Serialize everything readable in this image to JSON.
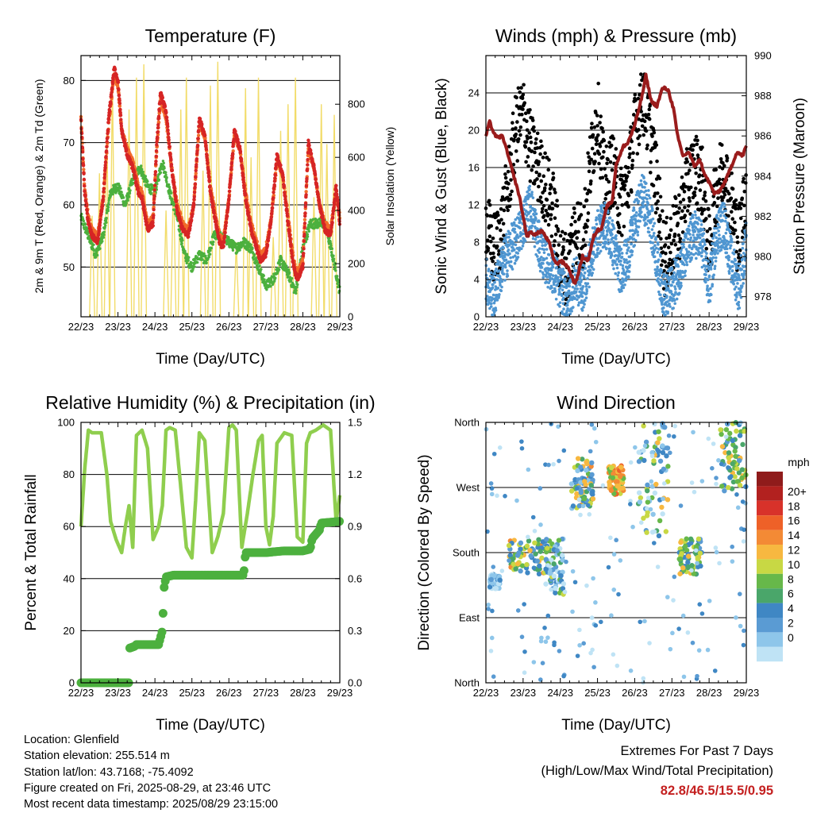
{
  "info": {
    "location": "Location: Glenfield",
    "elevation": "Station elevation: 255.514 m",
    "latlon": "Station lat/lon: 43.7168; -75.4092",
    "created": "Figure created on Fri, 2025-08-29, at 23:46 UTC",
    "recent": "Most recent data timestamp: 2025/08/29 23:15:00"
  },
  "extremes": {
    "heading": "Extremes For Past 7 Days",
    "subheading": "(High/Low/Max Wind/Total Precipitation)",
    "values": "82.8/46.5/15.5/0.95"
  },
  "chart_data": [
    {
      "type": "line",
      "title": "Temperature (F)",
      "xlabel": "Time (Day/UTC)",
      "ylabel": "2m & 9m T (Red, Orange) & 2m Td (Green)",
      "ylabel_right": "Solar Insolation (Yellow)",
      "x_ticks": [
        "22/23",
        "23/23",
        "24/23",
        "25/23",
        "26/23",
        "27/23",
        "28/23",
        "29/23"
      ],
      "xlim": [
        0,
        7
      ],
      "ylim": [
        42,
        84
      ],
      "y_ticks": [
        50,
        60,
        70,
        80
      ],
      "ylim_right": [
        0,
        983
      ],
      "y_ticks_right": [
        0,
        200,
        400,
        600,
        800
      ],
      "grid": "horizontal",
      "series": [
        {
          "name": "2m T",
          "axis": "left",
          "color": "#d62525",
          "x": [
            0,
            0.1,
            0.2,
            0.3,
            0.45,
            0.6,
            0.75,
            0.9,
            1.0,
            1.1,
            1.25,
            1.4,
            1.55,
            1.65,
            1.8,
            1.95,
            2.05,
            2.15,
            2.3,
            2.45,
            2.6,
            2.75,
            2.9,
            3.05,
            3.2,
            3.35,
            3.5,
            3.65,
            3.75,
            3.85,
            4.0,
            4.15,
            4.3,
            4.45,
            4.6,
            4.75,
            4.85,
            5.0,
            5.15,
            5.3,
            5.45,
            5.6,
            5.75,
            5.85,
            6.0,
            6.15,
            6.3,
            6.45,
            6.6,
            6.75,
            6.9,
            7.0
          ],
          "y": [
            74,
            62,
            57,
            55,
            54,
            61,
            74,
            82,
            80,
            72,
            68,
            66,
            62,
            61,
            56,
            57,
            70,
            78,
            75,
            66,
            59,
            56,
            55,
            60,
            74,
            71,
            62,
            57,
            54,
            53,
            61,
            72,
            69,
            61,
            56,
            53,
            51,
            52,
            58,
            68,
            65,
            57,
            50,
            48,
            50,
            70,
            66,
            60,
            56,
            55,
            63,
            57
          ]
        },
        {
          "name": "9m T",
          "axis": "left",
          "color": "#f26b2a",
          "x": [
            0,
            0.1,
            0.2,
            0.3,
            0.45,
            0.6,
            0.75,
            0.9,
            1.0,
            1.1,
            1.25,
            1.4,
            1.55,
            1.65,
            1.8,
            1.95,
            2.05,
            2.15,
            2.3,
            2.45,
            2.6,
            2.75,
            2.9,
            3.05,
            3.2,
            3.35,
            3.5,
            3.65,
            3.75,
            3.85,
            4.0,
            4.15,
            4.3,
            4.45,
            4.6,
            4.75,
            4.85,
            5.0,
            5.15,
            5.3,
            5.45,
            5.6,
            5.75,
            5.85,
            6.0,
            6.15,
            6.3,
            6.45,
            6.6,
            6.75,
            6.9,
            7.0
          ],
          "y": [
            74,
            62.5,
            58,
            56,
            55,
            61,
            73,
            81,
            79,
            72,
            69,
            67,
            63,
            62,
            57,
            58,
            69,
            77,
            74,
            66,
            60,
            57,
            56,
            60,
            73,
            71,
            63,
            58,
            55,
            54,
            61,
            71,
            69,
            62,
            57,
            54,
            52,
            53,
            58,
            67,
            65,
            58,
            51,
            49,
            51,
            69,
            66,
            60,
            57,
            56,
            62,
            58
          ]
        },
        {
          "name": "2m Td",
          "axis": "left",
          "color": "#4cb03e",
          "x": [
            0,
            0.2,
            0.4,
            0.6,
            0.8,
            1.0,
            1.2,
            1.4,
            1.6,
            1.8,
            2.0,
            2.2,
            2.4,
            2.6,
            2.8,
            3.0,
            3.2,
            3.4,
            3.6,
            3.8,
            4.0,
            4.2,
            4.4,
            4.6,
            4.8,
            5.0,
            5.2,
            5.4,
            5.6,
            5.8,
            6.0,
            6.2,
            6.4,
            6.6,
            6.8,
            7.0
          ],
          "y": [
            58,
            55,
            52,
            55,
            62,
            63,
            60,
            64,
            66,
            63,
            62,
            67,
            62,
            58,
            52,
            50,
            52,
            51,
            55,
            55,
            54,
            53,
            54,
            53,
            50,
            47,
            48,
            51,
            49,
            46,
            53,
            57,
            57,
            57,
            52,
            46
          ]
        },
        {
          "name": "Solar Insolation",
          "axis": "right",
          "color": "#f2dc6a",
          "peaks_x": [
            0.3,
            0.5,
            0.7,
            0.85,
            1.3,
            1.5,
            1.7,
            2.3,
            2.5,
            2.7,
            2.85,
            3.3,
            3.5,
            3.7,
            4.2,
            4.45,
            4.6,
            4.8,
            5.2,
            5.4,
            5.6,
            5.8,
            6.3,
            6.5,
            6.65,
            6.85
          ],
          "peaks_y": [
            380,
            540,
            700,
            900,
            780,
            900,
            950,
            400,
            540,
            780,
            900,
            550,
            870,
            960,
            280,
            860,
            600,
            900,
            300,
            700,
            800,
            900,
            450,
            800,
            650,
            760
          ]
        }
      ]
    },
    {
      "type": "scatter",
      "title": "Winds (mph) & Pressure (mb)",
      "xlabel": "Time (Day/UTC)",
      "ylabel": "Sonic Wind & Gust (Blue, Black)",
      "ylabel_right": "Station Pressure (Maroon)",
      "x_ticks": [
        "22/23",
        "23/23",
        "24/23",
        "25/23",
        "26/23",
        "27/23",
        "28/23",
        "29/23"
      ],
      "xlim": [
        0,
        7
      ],
      "ylim": [
        0,
        28
      ],
      "y_ticks": [
        0,
        4,
        8,
        12,
        16,
        20,
        24
      ],
      "ylim_right": [
        977,
        990
      ],
      "y_ticks_right": [
        978,
        980,
        982,
        984,
        986,
        988,
        990
      ],
      "grid": "horizontal",
      "series": [
        {
          "name": "Sonic Wind",
          "axis": "left",
          "color": "#4f96d1",
          "x": [
            0,
            0.2,
            0.4,
            0.6,
            0.8,
            1.0,
            1.2,
            1.4,
            1.6,
            1.8,
            2.0,
            2.2,
            2.4,
            2.6,
            2.8,
            3.0,
            3.2,
            3.4,
            3.6,
            3.8,
            4.0,
            4.2,
            4.4,
            4.6,
            4.8,
            5.0,
            5.2,
            5.4,
            5.6,
            5.8,
            6.0,
            6.2,
            6.4,
            6.6,
            6.8,
            7.0
          ],
          "y": [
            4,
            2,
            5,
            7,
            8,
            10,
            12,
            8,
            6,
            5,
            3,
            2,
            4,
            3,
            6,
            9,
            10,
            8,
            5,
            6,
            10,
            13,
            11,
            6,
            2,
            3,
            5,
            7,
            9,
            8,
            3,
            9,
            10,
            6,
            3,
            8
          ]
        },
        {
          "name": "Gust",
          "axis": "left",
          "color": "#000000",
          "x": [
            0,
            0.2,
            0.4,
            0.6,
            0.8,
            1.0,
            1.2,
            1.4,
            1.6,
            1.8,
            2.0,
            2.2,
            2.4,
            2.6,
            2.8,
            3.0,
            3.2,
            3.4,
            3.6,
            3.8,
            4.0,
            4.2,
            4.4,
            4.6,
            4.8,
            5.0,
            5.2,
            5.4,
            5.6,
            5.8,
            6.0,
            6.2,
            6.4,
            6.6,
            6.8,
            7.0
          ],
          "y": [
            10,
            7,
            9,
            14,
            20,
            22,
            18,
            16,
            14,
            12,
            6,
            5,
            10,
            8,
            16,
            22,
            14,
            16,
            12,
            14,
            20,
            24,
            20,
            14,
            6,
            8,
            10,
            14,
            16,
            15,
            7,
            14,
            16,
            12,
            8,
            14
          ]
        },
        {
          "name": "Station Pressure",
          "axis": "right",
          "color": "#9a1c1c",
          "x": [
            0,
            0.1,
            0.2,
            0.3,
            0.45,
            0.6,
            0.75,
            0.9,
            1.0,
            1.1,
            1.2,
            1.35,
            1.5,
            1.6,
            1.7,
            1.8,
            1.9,
            2.0,
            2.2,
            2.4,
            2.6,
            2.75,
            2.9,
            3.0,
            3.1,
            3.25,
            3.4,
            3.5,
            3.6,
            3.7,
            3.8,
            4.0,
            4.2,
            4.3,
            4.45,
            4.6,
            4.75,
            4.9,
            5.05,
            5.15,
            5.3,
            5.45,
            5.6,
            5.75,
            5.9,
            6.0,
            6.15,
            6.3,
            6.45,
            6.6,
            6.75,
            6.9,
            7.0
          ],
          "y": [
            986,
            986.7,
            986.2,
            985.9,
            986,
            985,
            984,
            983,
            982,
            981,
            981.2,
            981.1,
            981.3,
            981.0,
            980.7,
            980,
            979.6,
            979.8,
            979.5,
            978.6,
            980,
            979.8,
            981,
            981.3,
            981.4,
            982.5,
            982.8,
            984.6,
            985,
            985.5,
            985.6,
            986.5,
            988,
            989,
            987.7,
            987.5,
            988.4,
            988.3,
            987.3,
            986,
            985,
            985.2,
            984.5,
            984.8,
            984.0,
            983.7,
            983.1,
            983.3,
            983.8,
            984.5,
            985.2,
            985.0,
            985.5
          ]
        }
      ]
    },
    {
      "type": "line",
      "title": "Relative Humidity (%) & Precipitation (in)",
      "xlabel": "Time (Day/UTC)",
      "ylabel": "Percent & Total Rainfall",
      "x_ticks": [
        "22/23",
        "23/23",
        "24/23",
        "25/23",
        "26/23",
        "27/23",
        "28/23",
        "29/23"
      ],
      "xlim": [
        0,
        7
      ],
      "ylim": [
        0,
        100
      ],
      "y_ticks": [
        0,
        20,
        40,
        60,
        80,
        100
      ],
      "ylim_right": [
        0,
        1.5
      ],
      "y_ticks_right": [
        "0.0",
        "0.3",
        "0.6",
        "0.9",
        "1.2",
        "1.5"
      ],
      "grid": "horizontal",
      "series": [
        {
          "name": "Relative Humidity",
          "axis": "left",
          "color": "#8fce4e",
          "x": [
            0,
            0.1,
            0.2,
            0.3,
            0.55,
            0.7,
            0.8,
            0.95,
            1.1,
            1.2,
            1.3,
            1.4,
            1.5,
            1.65,
            1.8,
            1.95,
            2.1,
            2.2,
            2.3,
            2.4,
            2.55,
            2.7,
            2.85,
            3.0,
            3.1,
            3.2,
            3.35,
            3.55,
            3.7,
            3.85,
            4.0,
            4.1,
            4.2,
            4.35,
            4.5,
            4.65,
            4.8,
            4.9,
            5.0,
            5.1,
            5.2,
            5.3,
            5.5,
            5.7,
            5.85,
            6.0,
            6.1,
            6.2,
            6.35,
            6.55,
            6.75,
            6.9,
            7.0
          ],
          "y": [
            60,
            82,
            97,
            96,
            96,
            80,
            62,
            55,
            50,
            60,
            68,
            52,
            95,
            97,
            90,
            55,
            60,
            68,
            97,
            98,
            97,
            75,
            52,
            48,
            70,
            96,
            93,
            50,
            56,
            65,
            98,
            99,
            97,
            52,
            65,
            80,
            93,
            95,
            60,
            53,
            64,
            92,
            96,
            95,
            56,
            54,
            92,
            96,
            97,
            99,
            97,
            62,
            72
          ]
        },
        {
          "name": "Total Rainfall",
          "axis": "right",
          "color": "#4cb03e",
          "x": [
            0,
            0.5,
            1.0,
            1.3,
            1.32,
            1.45,
            1.5,
            2.1,
            2.2,
            2.25,
            2.3,
            2.5,
            3.0,
            3.5,
            4.0,
            4.4,
            4.45,
            5.0,
            5.5,
            6.0,
            6.2,
            6.25,
            6.45,
            6.5,
            7.0
          ],
          "y": [
            0,
            0,
            0,
            0,
            0.2,
            0.21,
            0.22,
            0.22,
            0.3,
            0.55,
            0.61,
            0.62,
            0.62,
            0.62,
            0.62,
            0.62,
            0.75,
            0.75,
            0.76,
            0.76,
            0.77,
            0.83,
            0.88,
            0.92,
            0.93
          ]
        }
      ]
    },
    {
      "type": "scatter",
      "title": "Wind Direction",
      "xlabel": "Time (Day/UTC)",
      "ylabel": "Direction (Colored By Speed)",
      "x_ticks": [
        "22/23",
        "23/23",
        "24/23",
        "25/23",
        "26/23",
        "27/23",
        "28/23",
        "29/23"
      ],
      "xlim": [
        0,
        7
      ],
      "ylim": [
        0,
        360
      ],
      "y_ticks": [
        "North",
        "East",
        "South",
        "West",
        "North"
      ],
      "y_tick_values": [
        0,
        90,
        180,
        270,
        360
      ],
      "grid": "horizontal",
      "colorbar": {
        "title": "mph",
        "labels": [
          "0",
          "2",
          "4",
          "6",
          "8",
          "10",
          "12",
          "14",
          "16",
          "18",
          "20+"
        ],
        "colors": [
          "#bfe3f5",
          "#8ec6ea",
          "#5a9bd3",
          "#3f87c4",
          "#4aa66a",
          "#67b84a",
          "#c8d844",
          "#f7b840",
          "#f38a35",
          "#ee6128",
          "#d8322a",
          "#b2211f",
          "#8f1b1b"
        ]
      },
      "clusters": [
        {
          "x": [
            0.1,
            0.4
          ],
          "y": [
            130,
            150
          ],
          "speed": "0-6"
        },
        {
          "x": [
            0.6,
            1.6
          ],
          "y": [
            150,
            200
          ],
          "speed": "4-14"
        },
        {
          "x": [
            1.6,
            2.1
          ],
          "y": [
            120,
            200
          ],
          "speed": "0-10"
        },
        {
          "x": [
            2.3,
            2.9
          ],
          "y": [
            240,
            310
          ],
          "speed": "2-14"
        },
        {
          "x": [
            3.3,
            3.7
          ],
          "y": [
            260,
            300
          ],
          "speed": "8-16"
        },
        {
          "x": [
            4.1,
            4.9
          ],
          "y": [
            200,
            360
          ],
          "speed": "0-12"
        },
        {
          "x": [
            5.2,
            5.8
          ],
          "y": [
            150,
            200
          ],
          "speed": "4-12"
        },
        {
          "x": [
            6.3,
            7.0
          ],
          "y": [
            260,
            360
          ],
          "speed": "4-12"
        }
      ]
    }
  ]
}
